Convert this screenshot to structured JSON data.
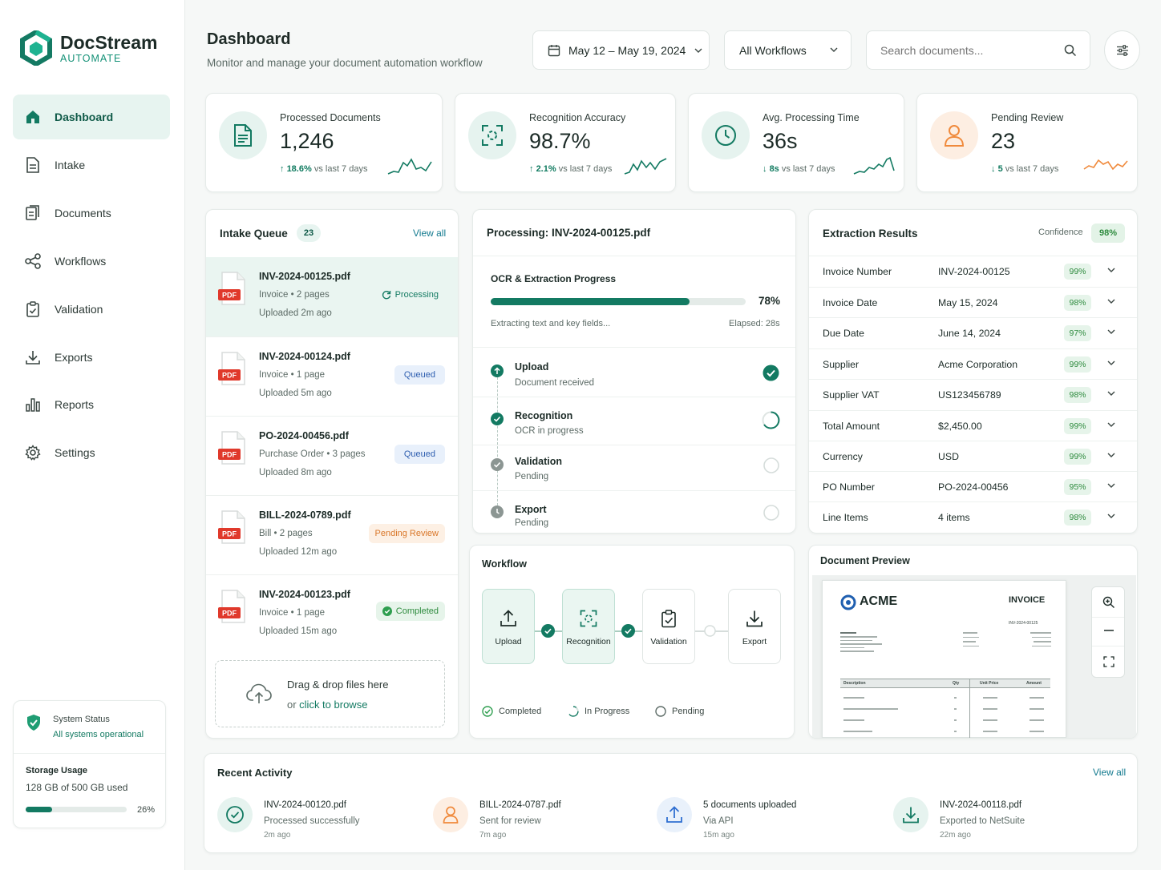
{
  "brand": {
    "name": "DocStream",
    "tagline": "AUTOMATE"
  },
  "nav": [
    {
      "label": "Dashboard",
      "icon": "home-icon",
      "active": true
    },
    {
      "label": "Intake",
      "icon": "file-icon"
    },
    {
      "label": "Documents",
      "icon": "documents-icon"
    },
    {
      "label": "Workflows",
      "icon": "share-icon"
    },
    {
      "label": "Validation",
      "icon": "clipboard-check-icon"
    },
    {
      "label": "Exports",
      "icon": "download-icon"
    },
    {
      "label": "Reports",
      "icon": "bar-chart-icon"
    },
    {
      "label": "Settings",
      "icon": "gear-icon"
    }
  ],
  "system_status": {
    "title": "System Status",
    "status": "All systems operational",
    "storage_title": "Storage Usage",
    "storage_text": "128 GB of 500 GB used",
    "storage_pct": "26%",
    "storage_fraction": 0.26
  },
  "header": {
    "title": "Dashboard",
    "subtitle": "Monitor and manage your document automation workflow",
    "date_range": "May 12 – May 19, 2024",
    "workflow_filter": "All Workflows",
    "search_placeholder": "Search documents..."
  },
  "stats": [
    {
      "label": "Processed Documents",
      "value": "1,246",
      "delta": "18.6%",
      "delta_text": "vs last 7 days",
      "direction": "up",
      "icon": "document-icon"
    },
    {
      "label": "Recognition Accuracy",
      "value": "98.7%",
      "delta": "2.1%",
      "delta_text": "vs last 7 days",
      "direction": "up",
      "icon": "scan-icon"
    },
    {
      "label": "Avg. Processing Time",
      "value": "36s",
      "delta": "8s",
      "delta_text": "vs last 7 days",
      "direction": "down",
      "icon": "clock-icon"
    },
    {
      "label": "Pending Review",
      "value": "23",
      "delta": "5",
      "delta_text": "vs last 7 days",
      "direction": "down",
      "icon": "user-icon"
    }
  ],
  "queue": {
    "title": "Intake Queue",
    "count": "23",
    "view_all": "View all",
    "items": [
      {
        "name": "INV-2024-00125.pdf",
        "meta": "Invoice • 2 pages",
        "time": "Uploaded 2m ago",
        "status": "Processing",
        "kind": "processing"
      },
      {
        "name": "INV-2024-00124.pdf",
        "meta": "Invoice • 1 page",
        "time": "Uploaded 5m ago",
        "status": "Queued",
        "kind": "queued"
      },
      {
        "name": "PO-2024-00456.pdf",
        "meta": "Purchase Order • 3 pages",
        "time": "Uploaded 8m ago",
        "status": "Queued",
        "kind": "queued"
      },
      {
        "name": "BILL-2024-0789.pdf",
        "meta": "Bill • 2 pages",
        "time": "Uploaded 12m ago",
        "status": "Pending Review",
        "kind": "pending"
      },
      {
        "name": "INV-2024-00123.pdf",
        "meta": "Invoice • 1 page",
        "time": "Uploaded 15m ago",
        "status": "Completed",
        "kind": "completed"
      }
    ],
    "pdf_label": "PDF",
    "dropzone": {
      "line1": "Drag & drop files here",
      "line2": "or ",
      "link": "click to browse"
    }
  },
  "processing": {
    "title": "Processing: INV-2024-00125.pdf",
    "ocr_title": "OCR & Extraction Progress",
    "progress": "78%",
    "progress_fraction": 0.78,
    "status_text": "Extracting text and key fields...",
    "elapsed": "Elapsed: 28s",
    "steps": [
      {
        "title": "Upload",
        "sub": "Document received",
        "state": "done"
      },
      {
        "title": "Recognition",
        "sub": "OCR in progress",
        "state": "active"
      },
      {
        "title": "Validation",
        "sub": "Pending",
        "state": "pending"
      },
      {
        "title": "Export",
        "sub": "Pending",
        "state": "pending"
      }
    ]
  },
  "extraction": {
    "title": "Extraction Results",
    "confidence_label": "Confidence",
    "confidence": "98%",
    "rows": [
      {
        "label": "Invoice Number",
        "value": "INV-2024-00125",
        "conf": "99%"
      },
      {
        "label": "Invoice Date",
        "value": "May 15, 2024",
        "conf": "98%"
      },
      {
        "label": "Due Date",
        "value": "June 14, 2024",
        "conf": "97%"
      },
      {
        "label": "Supplier",
        "value": "Acme Corporation",
        "conf": "99%"
      },
      {
        "label": "Supplier VAT",
        "value": "US123456789",
        "conf": "98%"
      },
      {
        "label": "Total Amount",
        "value": "$2,450.00",
        "conf": "99%"
      },
      {
        "label": "Currency",
        "value": "USD",
        "conf": "99%"
      },
      {
        "label": "PO Number",
        "value": "PO-2024-00456",
        "conf": "95%"
      },
      {
        "label": "Line Items",
        "value": "4 items",
        "conf": "98%"
      }
    ]
  },
  "workflow": {
    "title": "Workflow",
    "nodes": [
      "Upload",
      "Recognition",
      "Validation",
      "Export"
    ],
    "legend": [
      "Completed",
      "In Progress",
      "Pending"
    ]
  },
  "preview": {
    "title": "Document Preview",
    "company": "ACME",
    "doc_type": "INVOICE",
    "doc_number": "INV-2024-00125",
    "table_headers": [
      "Description",
      "Qty",
      "Unit Price",
      "Amount"
    ]
  },
  "activity": {
    "title": "Recent Activity",
    "view_all": "View all",
    "items": [
      {
        "title": "INV-2024-00120.pdf",
        "sub": "Processed successfully",
        "when": "2m ago",
        "icon": "check-circle-icon"
      },
      {
        "title": "BILL-2024-0787.pdf",
        "sub": "Sent for review",
        "when": "7m ago",
        "icon": "user-icon"
      },
      {
        "title": "5 documents uploaded",
        "sub": "Via API",
        "when": "15m ago",
        "icon": "upload-icon"
      },
      {
        "title": "INV-2024-00118.pdf",
        "sub": "Exported to NetSuite",
        "when": "22m ago",
        "icon": "download-icon"
      }
    ]
  },
  "colors": {
    "primary": "#137a62",
    "accent_light": "#e7f4f0",
    "orange": "#f08a3c",
    "blue": "#2f6fd1"
  }
}
